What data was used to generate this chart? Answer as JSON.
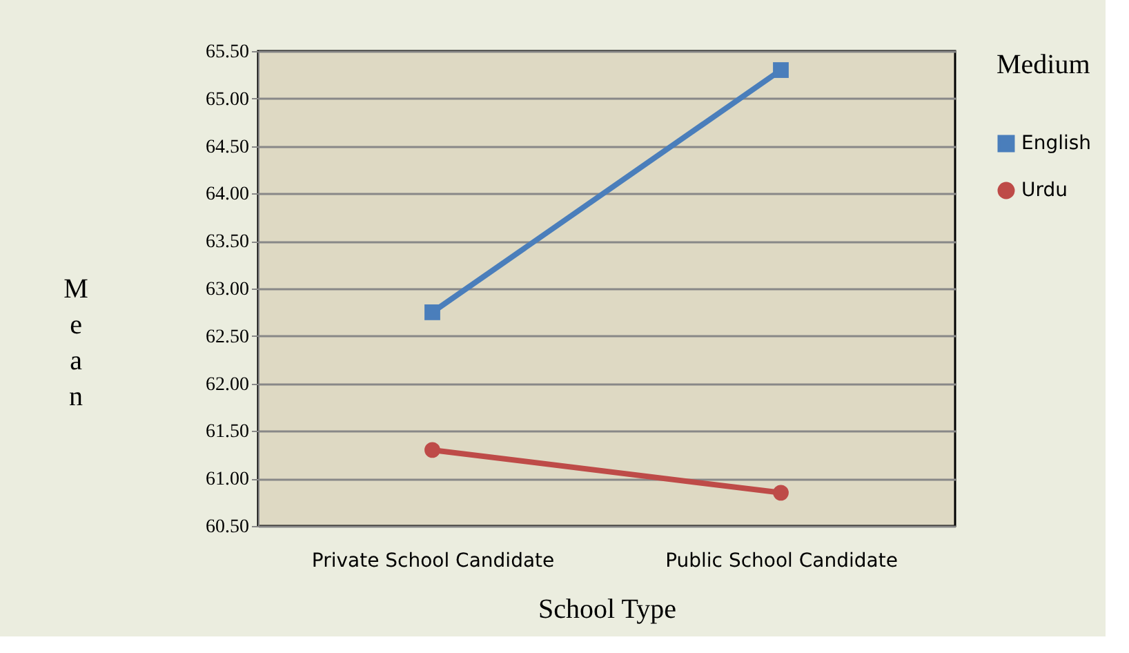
{
  "chart_data": {
    "type": "line",
    "xlabel": "School Type",
    "ylabel": "Mean",
    "legend_title": "Medium",
    "legend": "right",
    "grid": "y",
    "categories": [
      "Private School Candidate",
      "Public School Candidate"
    ],
    "ylim": [
      60.5,
      65.5
    ],
    "yticks": [
      {
        "value": 60.5,
        "label": "60.50"
      },
      {
        "value": 61,
        "label": "61.00"
      },
      {
        "value": 61.5,
        "label": "61.50"
      },
      {
        "value": 62,
        "label": "62.00"
      },
      {
        "value": 62.5,
        "label": "62.50"
      },
      {
        "value": 63,
        "label": "63.00"
      },
      {
        "value": 63.5,
        "label": "63.50"
      },
      {
        "value": 64,
        "label": "64.00"
      },
      {
        "value": 64.5,
        "label": "64.50"
      },
      {
        "value": 65,
        "label": "65.00"
      },
      {
        "value": 65.5,
        "label": "65.50"
      }
    ],
    "series": [
      {
        "name": "English",
        "color": "#4a7ebb",
        "marker": "square",
        "values": [
          62.75,
          65.3
        ]
      },
      {
        "name": "Urdu",
        "color": "#be4b48",
        "marker": "circle",
        "values": [
          61.3,
          60.85
        ]
      }
    ]
  }
}
